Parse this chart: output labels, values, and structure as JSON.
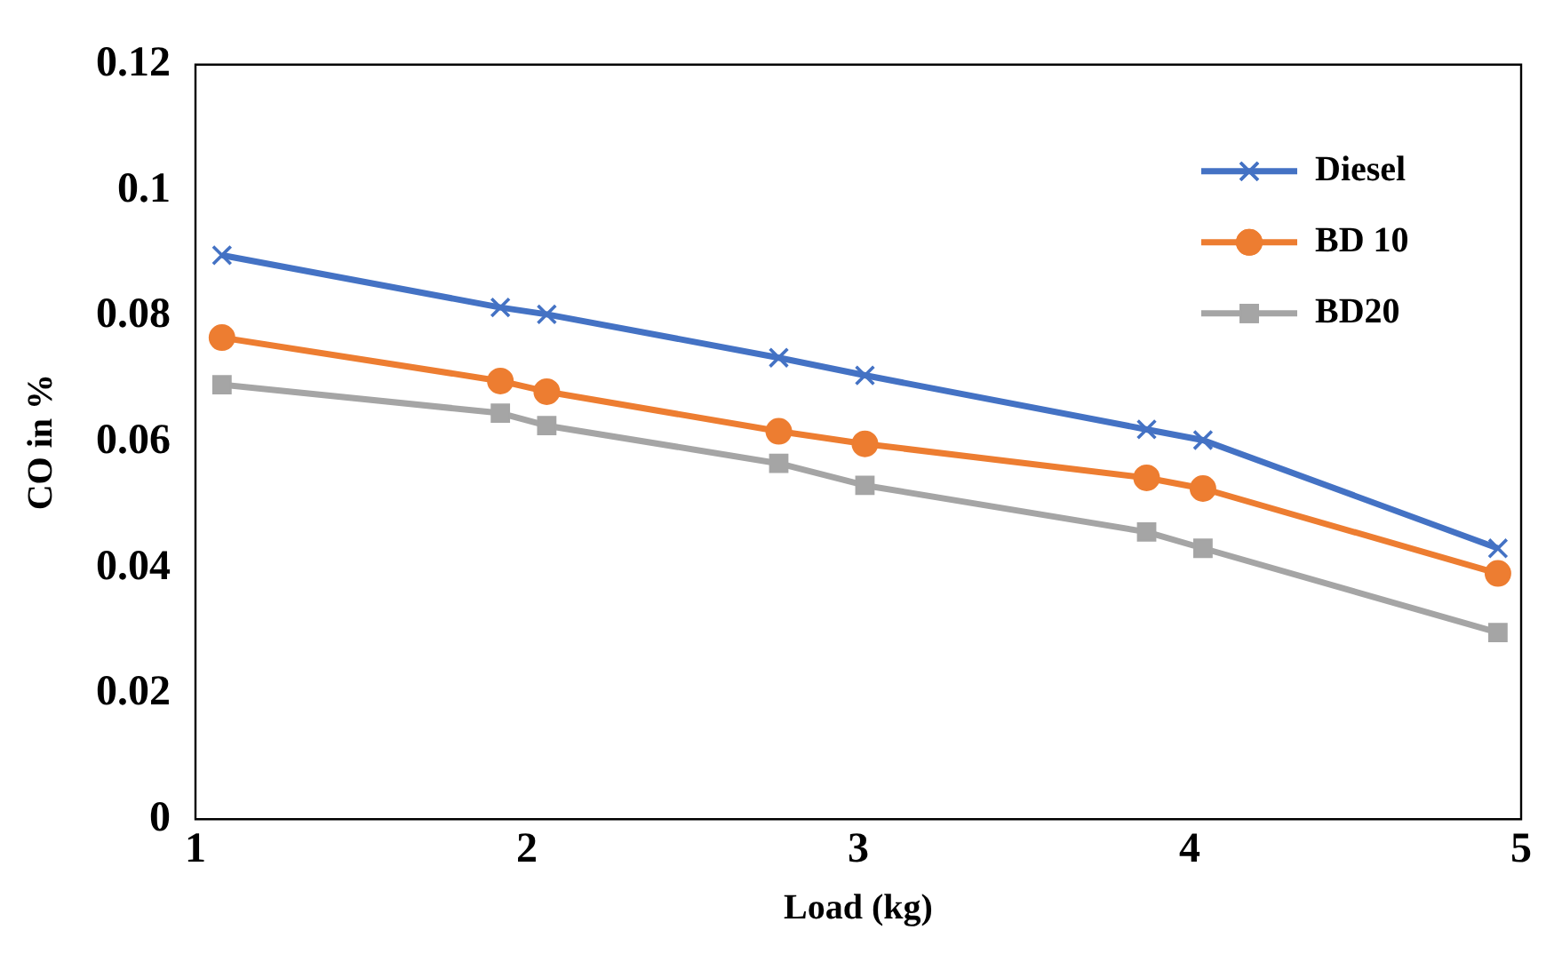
{
  "chart_data": {
    "type": "line",
    "xlabel": "Load (kg)",
    "ylabel": "CO in %",
    "x": [
      1.08,
      1.92,
      2.06,
      2.76,
      3.02,
      3.87,
      4.04,
      4.93
    ],
    "series": [
      {
        "name": "Diesel",
        "color": "#4472c4",
        "marker": "cross",
        "values": [
          0.0897,
          0.0814,
          0.0803,
          0.0734,
          0.0706,
          0.062,
          0.0603,
          0.0431
        ]
      },
      {
        "name": "BD 10",
        "color": "#ed7d31",
        "marker": "circle",
        "values": [
          0.0766,
          0.0697,
          0.068,
          0.0617,
          0.0597,
          0.0543,
          0.0526,
          0.0391
        ]
      },
      {
        "name": "BD20",
        "color": "#a5a5a5",
        "marker": "square",
        "values": [
          0.0691,
          0.0646,
          0.0626,
          0.0566,
          0.0531,
          0.0457,
          0.0431,
          0.0297
        ]
      }
    ],
    "xlim": [
      1,
      5
    ],
    "xticks": [
      1,
      2,
      3,
      4,
      5
    ],
    "ylim": [
      0,
      0.12
    ],
    "yticks": [
      0,
      0.02,
      0.04,
      0.06,
      0.08,
      0.1,
      0.12
    ],
    "grid": false,
    "legend": "top right",
    "line_style": "solid"
  }
}
